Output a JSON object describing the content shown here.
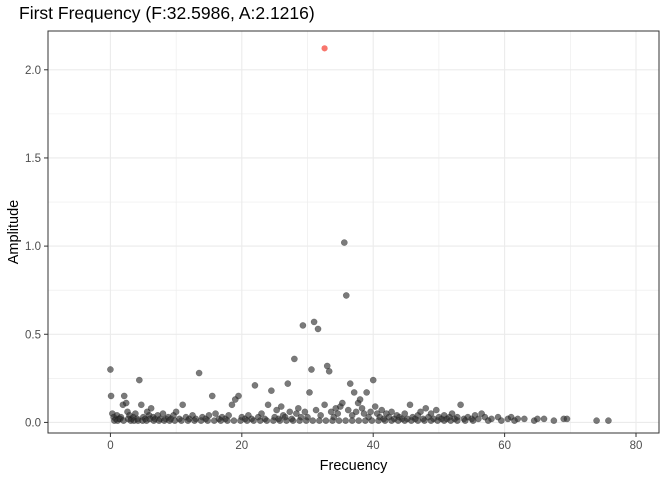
{
  "chart_data": {
    "type": "scatter",
    "title": "First Frequency (F:32.5986, A:2.1216)",
    "xlabel": "Frecuency",
    "ylabel": "Amplitude",
    "xlim": [
      -9.5,
      83.5
    ],
    "ylim": [
      -0.06,
      2.22
    ],
    "x_ticks": [
      0,
      20,
      40,
      60,
      80
    ],
    "x_tick_labels": [
      "0",
      "20",
      "40",
      "60",
      "80"
    ],
    "y_ticks": [
      0.0,
      0.5,
      1.0,
      1.5,
      2.0
    ],
    "y_tick_labels": [
      "0.0",
      "0.5",
      "1.0",
      "1.5",
      "2.0"
    ],
    "grid": true,
    "legend": "none",
    "colors": {
      "points": "#333333",
      "highlight": "#f8766d",
      "grid": "#ebebeb",
      "panel_border": "#333333"
    },
    "highlight": {
      "x": 32.5986,
      "y": 2.1216
    },
    "series": [
      {
        "points": [
          [
            0.0,
            0.3
          ],
          [
            0.1,
            0.15
          ],
          [
            0.3,
            0.05
          ],
          [
            0.5,
            0.03
          ],
          [
            0.8,
            0.02
          ],
          [
            1.0,
            0.04
          ],
          [
            1.3,
            0.02
          ],
          [
            1.6,
            0.03
          ],
          [
            1.9,
            0.1
          ],
          [
            2.1,
            0.15
          ],
          [
            2.4,
            0.11
          ],
          [
            2.6,
            0.06
          ],
          [
            2.9,
            0.04
          ],
          [
            3.2,
            0.02
          ],
          [
            3.5,
            0.03
          ],
          [
            3.8,
            0.05
          ],
          [
            4.1,
            0.02
          ],
          [
            4.4,
            0.24
          ],
          [
            4.7,
            0.1
          ],
          [
            5.0,
            0.03
          ],
          [
            5.3,
            0.02
          ],
          [
            5.6,
            0.06
          ],
          [
            5.9,
            0.04
          ],
          [
            6.2,
            0.08
          ],
          [
            6.5,
            0.03
          ],
          [
            6.8,
            0.02
          ],
          [
            7.2,
            0.04
          ],
          [
            7.6,
            0.02
          ],
          [
            8.0,
            0.05
          ],
          [
            8.4,
            0.02
          ],
          [
            8.8,
            0.03
          ],
          [
            9.2,
            0.02
          ],
          [
            9.6,
            0.04
          ],
          [
            10.0,
            0.06
          ],
          [
            10.5,
            0.02
          ],
          [
            11.0,
            0.1
          ],
          [
            11.5,
            0.03
          ],
          [
            12.0,
            0.02
          ],
          [
            12.5,
            0.04
          ],
          [
            13.0,
            0.02
          ],
          [
            13.5,
            0.28
          ],
          [
            14.0,
            0.03
          ],
          [
            14.5,
            0.02
          ],
          [
            15.0,
            0.04
          ],
          [
            15.5,
            0.15
          ],
          [
            16.0,
            0.05
          ],
          [
            16.5,
            0.02
          ],
          [
            17.0,
            0.03
          ],
          [
            17.5,
            0.02
          ],
          [
            18.0,
            0.04
          ],
          [
            18.5,
            0.1
          ],
          [
            19.0,
            0.13
          ],
          [
            19.5,
            0.15
          ],
          [
            20.0,
            0.03
          ],
          [
            20.5,
            0.02
          ],
          [
            21.0,
            0.04
          ],
          [
            21.5,
            0.02
          ],
          [
            22.0,
            0.21
          ],
          [
            22.5,
            0.03
          ],
          [
            23.0,
            0.05
          ],
          [
            23.5,
            0.02
          ],
          [
            24.0,
            0.1
          ],
          [
            24.5,
            0.18
          ],
          [
            25.0,
            0.03
          ],
          [
            25.3,
            0.07
          ],
          [
            25.6,
            0.02
          ],
          [
            26.0,
            0.09
          ],
          [
            26.3,
            0.04
          ],
          [
            26.6,
            0.03
          ],
          [
            27.0,
            0.22
          ],
          [
            27.3,
            0.06
          ],
          [
            27.6,
            0.02
          ],
          [
            28.0,
            0.36
          ],
          [
            28.3,
            0.05
          ],
          [
            28.6,
            0.08
          ],
          [
            29.0,
            0.03
          ],
          [
            29.3,
            0.55
          ],
          [
            29.6,
            0.06
          ],
          [
            30.0,
            0.03
          ],
          [
            30.3,
            0.17
          ],
          [
            30.6,
            0.3
          ],
          [
            31.0,
            0.57
          ],
          [
            31.3,
            0.07
          ],
          [
            31.6,
            0.53
          ],
          [
            32.0,
            0.04
          ],
          [
            32.6,
            0.1
          ],
          [
            33.0,
            0.32
          ],
          [
            33.3,
            0.29
          ],
          [
            33.6,
            0.06
          ],
          [
            34.0,
            0.03
          ],
          [
            34.3,
            0.08
          ],
          [
            34.6,
            0.05
          ],
          [
            35.0,
            0.09
          ],
          [
            35.3,
            0.11
          ],
          [
            35.6,
            1.02
          ],
          [
            35.9,
            0.72
          ],
          [
            36.2,
            0.07
          ],
          [
            36.5,
            0.22
          ],
          [
            36.8,
            0.04
          ],
          [
            37.1,
            0.17
          ],
          [
            37.4,
            0.06
          ],
          [
            37.7,
            0.11
          ],
          [
            38.0,
            0.13
          ],
          [
            38.3,
            0.08
          ],
          [
            38.6,
            0.05
          ],
          [
            39.0,
            0.17
          ],
          [
            39.3,
            0.03
          ],
          [
            39.6,
            0.06
          ],
          [
            40.0,
            0.24
          ],
          [
            40.3,
            0.09
          ],
          [
            40.6,
            0.05
          ],
          [
            41.0,
            0.03
          ],
          [
            41.3,
            0.07
          ],
          [
            41.6,
            0.02
          ],
          [
            42.0,
            0.05
          ],
          [
            42.4,
            0.03
          ],
          [
            42.8,
            0.06
          ],
          [
            43.2,
            0.02
          ],
          [
            43.6,
            0.04
          ],
          [
            44.0,
            0.03
          ],
          [
            44.4,
            0.02
          ],
          [
            44.8,
            0.05
          ],
          [
            45.2,
            0.02
          ],
          [
            45.6,
            0.1
          ],
          [
            46.0,
            0.03
          ],
          [
            46.4,
            0.02
          ],
          [
            46.8,
            0.04
          ],
          [
            47.2,
            0.06
          ],
          [
            47.6,
            0.02
          ],
          [
            48.0,
            0.08
          ],
          [
            48.4,
            0.03
          ],
          [
            48.8,
            0.05
          ],
          [
            49.2,
            0.02
          ],
          [
            49.6,
            0.07
          ],
          [
            50.0,
            0.03
          ],
          [
            50.4,
            0.02
          ],
          [
            50.8,
            0.04
          ],
          [
            51.2,
            0.02
          ],
          [
            51.6,
            0.03
          ],
          [
            52.0,
            0.05
          ],
          [
            52.4,
            0.02
          ],
          [
            52.8,
            0.03
          ],
          [
            53.3,
            0.1
          ],
          [
            53.8,
            0.02
          ],
          [
            54.4,
            0.03
          ],
          [
            55.0,
            0.02
          ],
          [
            55.5,
            0.04
          ],
          [
            56.0,
            0.02
          ],
          [
            56.5,
            0.05
          ],
          [
            57.0,
            0.03
          ],
          [
            58.0,
            0.02
          ],
          [
            59.0,
            0.03
          ],
          [
            60.5,
            0.02
          ],
          [
            61.0,
            0.03
          ],
          [
            62.0,
            0.02
          ],
          [
            63.0,
            0.02
          ],
          [
            64.5,
            0.01
          ],
          [
            65.0,
            0.02
          ],
          [
            66.0,
            0.02
          ],
          [
            67.5,
            0.01
          ],
          [
            69.0,
            0.02
          ],
          [
            69.5,
            0.02
          ],
          [
            74.0,
            0.01
          ],
          [
            75.8,
            0.01
          ],
          [
            0.6,
            0.01
          ],
          [
            1.1,
            0.01
          ],
          [
            1.5,
            0.02
          ],
          [
            2.0,
            0.01
          ],
          [
            2.7,
            0.02
          ],
          [
            3.1,
            0.01
          ],
          [
            3.6,
            0.01
          ],
          [
            4.2,
            0.01
          ],
          [
            4.9,
            0.01
          ],
          [
            5.5,
            0.01
          ],
          [
            6.0,
            0.02
          ],
          [
            6.6,
            0.01
          ],
          [
            7.4,
            0.01
          ],
          [
            8.2,
            0.01
          ],
          [
            9.0,
            0.01
          ],
          [
            9.8,
            0.01
          ],
          [
            10.8,
            0.01
          ],
          [
            11.8,
            0.01
          ],
          [
            12.8,
            0.01
          ],
          [
            13.8,
            0.01
          ],
          [
            14.8,
            0.01
          ],
          [
            15.8,
            0.01
          ],
          [
            16.8,
            0.01
          ],
          [
            17.8,
            0.01
          ],
          [
            18.8,
            0.01
          ],
          [
            19.8,
            0.01
          ],
          [
            20.8,
            0.01
          ],
          [
            21.8,
            0.01
          ],
          [
            22.8,
            0.01
          ],
          [
            23.8,
            0.01
          ],
          [
            24.8,
            0.01
          ],
          [
            25.8,
            0.01
          ],
          [
            26.8,
            0.01
          ],
          [
            27.8,
            0.01
          ],
          [
            28.8,
            0.01
          ],
          [
            29.8,
            0.01
          ],
          [
            30.8,
            0.01
          ],
          [
            31.8,
            0.01
          ],
          [
            32.8,
            0.01
          ],
          [
            33.8,
            0.01
          ],
          [
            34.8,
            0.01
          ],
          [
            35.8,
            0.01
          ],
          [
            36.8,
            0.01
          ],
          [
            37.8,
            0.01
          ],
          [
            38.8,
            0.01
          ],
          [
            39.8,
            0.01
          ],
          [
            40.8,
            0.01
          ],
          [
            41.8,
            0.01
          ],
          [
            42.8,
            0.01
          ],
          [
            43.8,
            0.01
          ],
          [
            44.8,
            0.01
          ],
          [
            45.8,
            0.01
          ],
          [
            46.8,
            0.01
          ],
          [
            47.8,
            0.01
          ],
          [
            48.8,
            0.01
          ],
          [
            49.8,
            0.01
          ],
          [
            50.8,
            0.01
          ],
          [
            51.8,
            0.01
          ],
          [
            52.8,
            0.01
          ],
          [
            54.0,
            0.01
          ],
          [
            55.2,
            0.01
          ],
          [
            57.5,
            0.01
          ],
          [
            59.5,
            0.01
          ],
          [
            61.5,
            0.01
          ]
        ]
      }
    ]
  }
}
